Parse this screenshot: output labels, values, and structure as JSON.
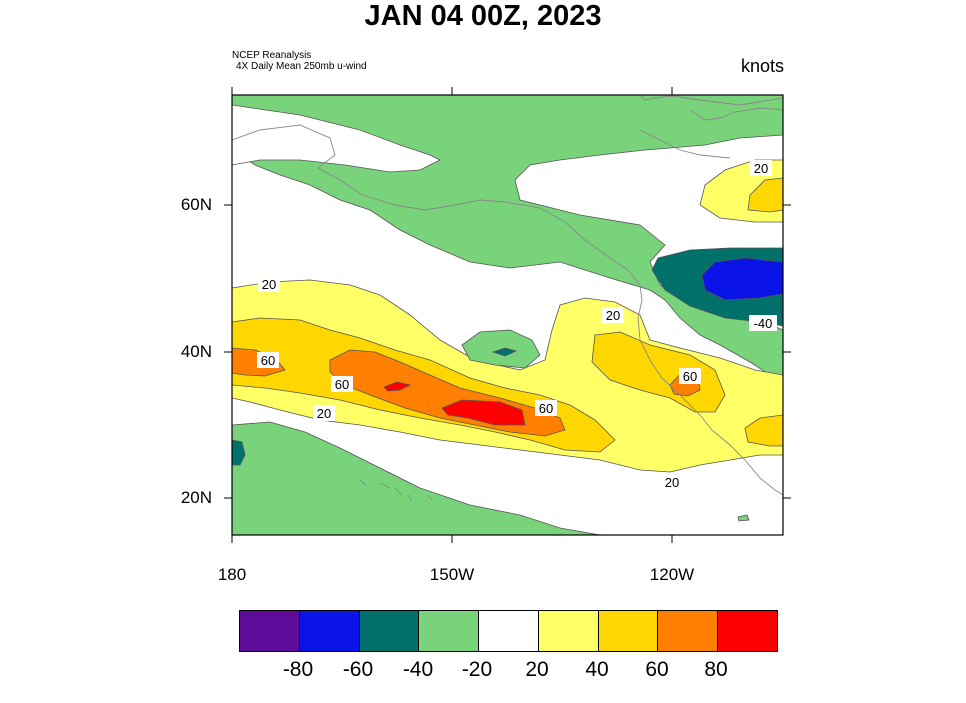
{
  "title": "JAN 04 00Z, 2023",
  "source_line1": "NCEP Reanalysis",
  "source_line2": "4X Daily Mean 250mb u-wind",
  "units": "knots",
  "lat_labels": [
    "60N",
    "40N",
    "20N"
  ],
  "lon_labels": [
    "180",
    "150W",
    "120W"
  ],
  "contour_labels": [
    "20",
    "60",
    "60",
    "20",
    "60",
    "20",
    "60",
    "20",
    "20",
    "-40"
  ],
  "colorbar": {
    "colors": [
      "#5e0c99",
      "#0a14e6",
      "#00706a",
      "#79d37b",
      "#ffffff",
      "#ffff66",
      "#ffd700",
      "#ff8000",
      "#ff0000"
    ],
    "labels": [
      "-80",
      "-60",
      "-40",
      "-20",
      "20",
      "40",
      "60",
      "80"
    ]
  }
}
